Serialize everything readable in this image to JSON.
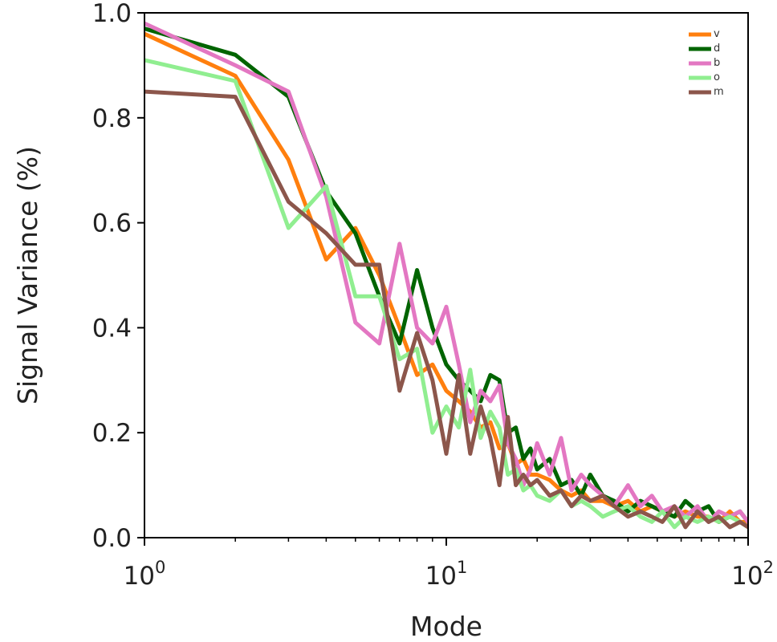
{
  "chart_data": {
    "type": "line",
    "title": "",
    "xlabel": "Mode",
    "ylabel": "Signal Variance (%)",
    "xscale": "log",
    "xlim": [
      1,
      100
    ],
    "ylim": [
      0.0,
      1.0
    ],
    "grid": false,
    "legend_position": "top-right",
    "x_ticks": [
      {
        "value": 1,
        "base": "10",
        "exp": "0"
      },
      {
        "value": 10,
        "base": "10",
        "exp": "1"
      },
      {
        "value": 100,
        "base": "10",
        "exp": "2"
      }
    ],
    "y_ticks": [
      {
        "value": 0.0,
        "label": "0.0"
      },
      {
        "value": 0.2,
        "label": "0.2"
      },
      {
        "value": 0.4,
        "label": "0.4"
      },
      {
        "value": 0.6,
        "label": "0.6"
      },
      {
        "value": 0.8,
        "label": "0.8"
      },
      {
        "value": 1.0,
        "label": "1.0"
      }
    ],
    "x": [
      1,
      2,
      3,
      4,
      5,
      6,
      7,
      8,
      9,
      10,
      11,
      12,
      13,
      14,
      15,
      16,
      17,
      18,
      19,
      20,
      22,
      24,
      26,
      28,
      30,
      33,
      36,
      40,
      44,
      48,
      52,
      57,
      62,
      68,
      74,
      80,
      87,
      94,
      100
    ],
    "series": [
      {
        "name": "v",
        "color": "#ff7f0e",
        "values": [
          0.96,
          0.88,
          0.72,
          0.53,
          0.59,
          0.5,
          0.4,
          0.31,
          0.33,
          0.28,
          0.26,
          0.24,
          0.21,
          0.22,
          0.17,
          0.18,
          0.14,
          0.15,
          0.12,
          0.12,
          0.11,
          0.09,
          0.08,
          0.09,
          0.07,
          0.07,
          0.06,
          0.07,
          0.05,
          0.06,
          0.05,
          0.04,
          0.05,
          0.04,
          0.04,
          0.03,
          0.05,
          0.03,
          0.03
        ]
      },
      {
        "name": "d",
        "color": "#006400",
        "values": [
          0.97,
          0.92,
          0.84,
          0.66,
          0.58,
          0.46,
          0.37,
          0.51,
          0.4,
          0.33,
          0.3,
          0.28,
          0.26,
          0.31,
          0.3,
          0.2,
          0.21,
          0.15,
          0.17,
          0.13,
          0.15,
          0.1,
          0.11,
          0.08,
          0.12,
          0.08,
          0.07,
          0.05,
          0.07,
          0.06,
          0.05,
          0.04,
          0.07,
          0.05,
          0.06,
          0.03,
          0.04,
          0.05,
          0.03
        ]
      },
      {
        "name": "b",
        "color": "#e377c2",
        "values": [
          0.98,
          0.9,
          0.85,
          0.65,
          0.41,
          0.37,
          0.56,
          0.4,
          0.37,
          0.44,
          0.33,
          0.22,
          0.28,
          0.26,
          0.29,
          0.18,
          0.15,
          0.1,
          0.13,
          0.18,
          0.12,
          0.19,
          0.09,
          0.12,
          0.1,
          0.08,
          0.06,
          0.1,
          0.06,
          0.08,
          0.05,
          0.06,
          0.04,
          0.06,
          0.03,
          0.05,
          0.04,
          0.05,
          0.03
        ]
      },
      {
        "name": "o",
        "color": "#90ee90",
        "values": [
          0.91,
          0.87,
          0.59,
          0.67,
          0.46,
          0.46,
          0.34,
          0.36,
          0.2,
          0.25,
          0.21,
          0.32,
          0.19,
          0.24,
          0.21,
          0.12,
          0.13,
          0.09,
          0.1,
          0.08,
          0.07,
          0.09,
          0.06,
          0.07,
          0.06,
          0.04,
          0.05,
          0.06,
          0.04,
          0.03,
          0.05,
          0.02,
          0.04,
          0.03,
          0.04,
          0.03,
          0.04,
          0.03,
          0.02
        ]
      },
      {
        "name": "m",
        "color": "#8c564b",
        "values": [
          0.85,
          0.84,
          0.64,
          0.58,
          0.52,
          0.52,
          0.28,
          0.39,
          0.3,
          0.16,
          0.31,
          0.16,
          0.25,
          0.19,
          0.1,
          0.23,
          0.1,
          0.12,
          0.1,
          0.11,
          0.08,
          0.09,
          0.06,
          0.08,
          0.07,
          0.08,
          0.06,
          0.04,
          0.05,
          0.04,
          0.03,
          0.06,
          0.02,
          0.05,
          0.03,
          0.04,
          0.02,
          0.03,
          0.02
        ]
      }
    ]
  }
}
